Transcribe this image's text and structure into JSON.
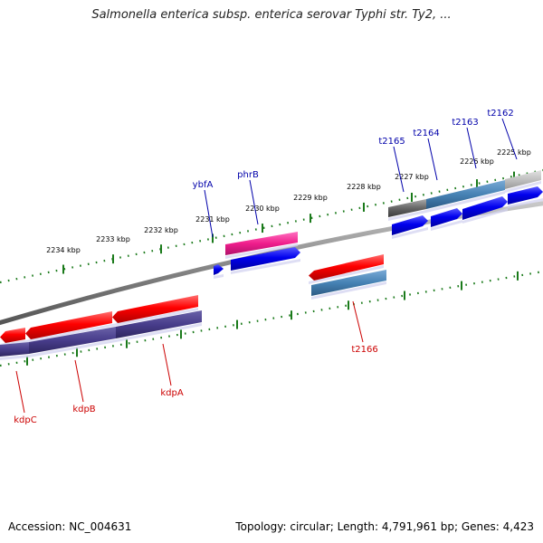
{
  "title": "Salmonella enterica subsp. enterica serovar Typhi str. Ty2, ...",
  "footer": {
    "accession": "Accession: NC_004631",
    "summary": "Topology: circular; Length: 4,791,961 bp; Genes: 4,423"
  },
  "colors": {
    "forward_gene": "#0000ee",
    "reverse_gene": "#ee0000",
    "forward_label": "#0000aa",
    "reverse_label": "#cc0000",
    "tick": "#1a7a1a"
  },
  "ticks": [
    {
      "label": "2225 kbp"
    },
    {
      "label": "2226 kbp"
    },
    {
      "label": "2227 kbp"
    },
    {
      "label": "2228 kbp"
    },
    {
      "label": "2229 kbp"
    },
    {
      "label": "2230 kbp"
    },
    {
      "label": "2231 kbp"
    },
    {
      "label": "2232 kbp"
    },
    {
      "label": "2233 kbp"
    },
    {
      "label": "2234 kbp"
    }
  ],
  "genes": [
    {
      "name": "t2162",
      "strand": "forward"
    },
    {
      "name": "t2163",
      "strand": "forward"
    },
    {
      "name": "t2164",
      "strand": "forward"
    },
    {
      "name": "t2165",
      "strand": "forward"
    },
    {
      "name": "phrB",
      "strand": "forward"
    },
    {
      "name": "ybfA",
      "strand": "forward"
    },
    {
      "name": "t2166",
      "strand": "reverse"
    },
    {
      "name": "kdpA",
      "strand": "reverse"
    },
    {
      "name": "kdpB",
      "strand": "reverse"
    },
    {
      "name": "kdpC",
      "strand": "reverse"
    }
  ]
}
